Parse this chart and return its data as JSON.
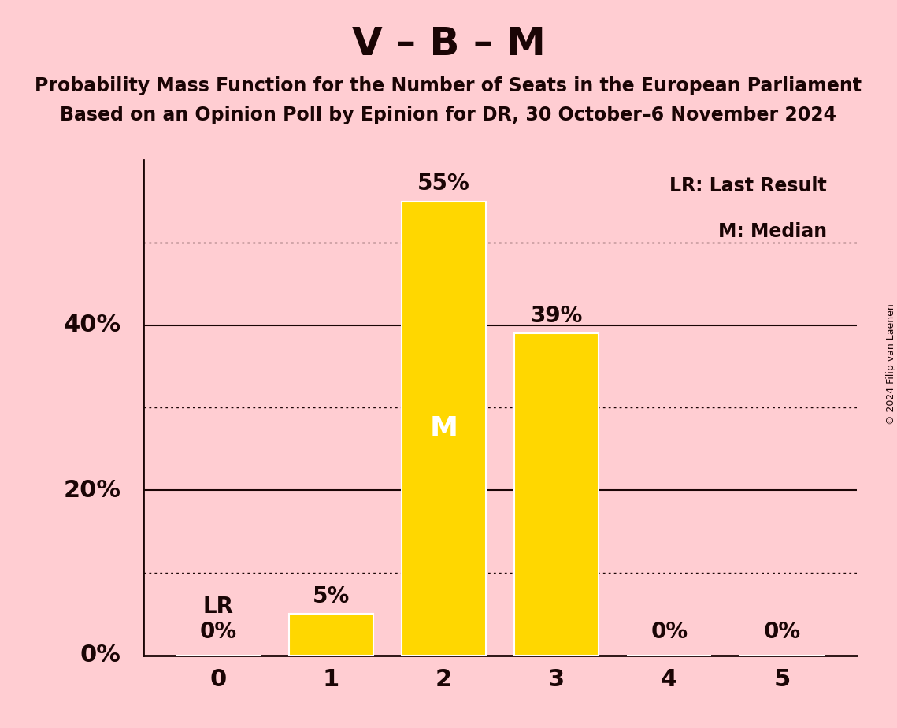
{
  "title": "V – B – M",
  "subtitle1": "Probability Mass Function for the Number of Seats in the European Parliament",
  "subtitle2": "Based on an Opinion Poll by Epinion for DR, 30 October–6 November 2024",
  "copyright": "© 2024 Filip van Laenen",
  "categories": [
    0,
    1,
    2,
    3,
    4,
    5
  ],
  "values": [
    0,
    5,
    55,
    39,
    0,
    0
  ],
  "bar_color": "#FFD700",
  "background_color": "#FFCDD2",
  "text_color": "#1A0505",
  "median_bar": 2,
  "lr_bar": 0,
  "legend_lr": "LR: Last Result",
  "legend_m": "M: Median",
  "ylim": [
    0,
    60
  ],
  "dotted_lines": [
    10,
    30,
    50
  ],
  "solid_lines": [
    20,
    40
  ],
  "bar_edge_color": "#FFFFFF",
  "bar_linewidth": 1.5,
  "title_fontsize": 36,
  "subtitle_fontsize": 17,
  "tick_fontsize": 22,
  "label_fontsize": 20,
  "legend_fontsize": 17,
  "copyright_fontsize": 9
}
